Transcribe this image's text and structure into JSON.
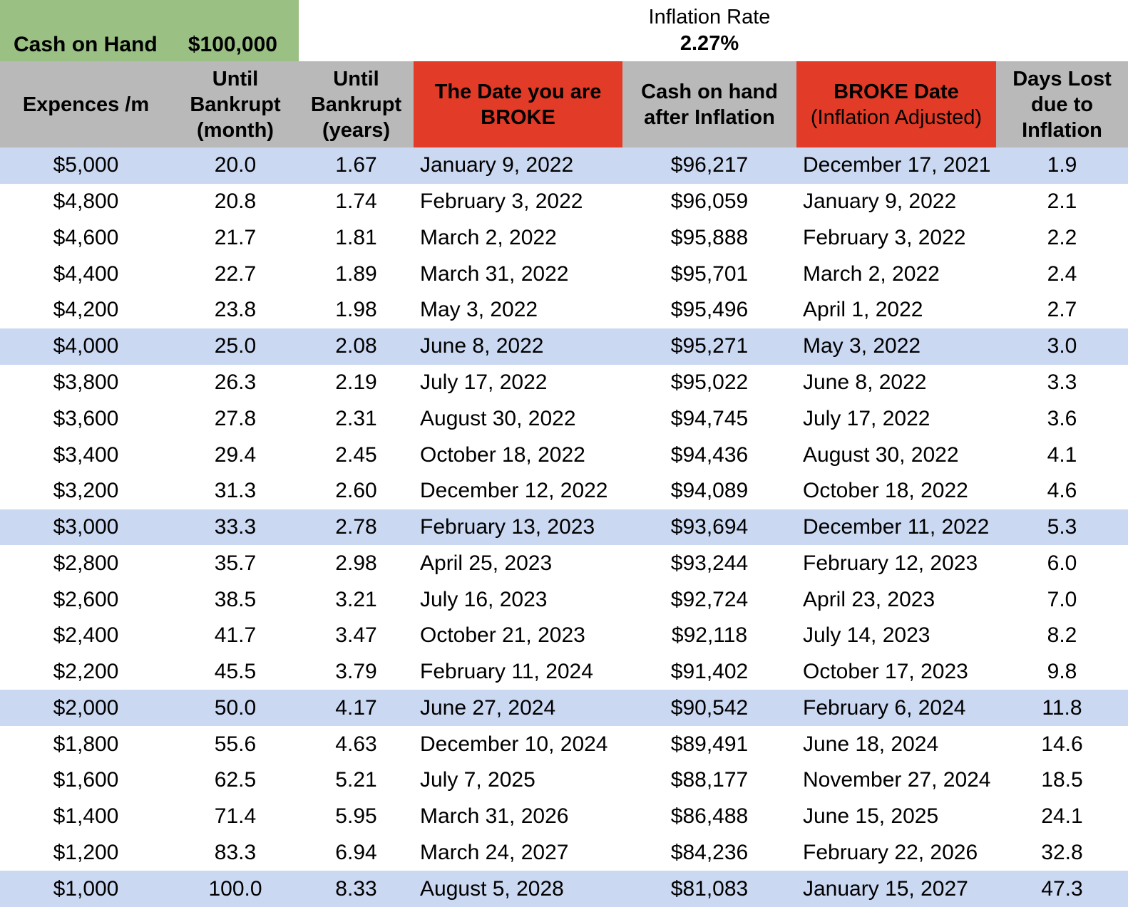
{
  "summary": {
    "cash_on_hand_label": "Cash on Hand",
    "cash_on_hand_value": "$100,000",
    "inflation_rate_label": "Inflation Rate",
    "inflation_rate_value": "2.27%"
  },
  "colors": {
    "green_cell": "#9bc083",
    "gray_header": "#b9b9b9",
    "red_header": "#e23b27",
    "highlight_row_blue": "#cbd8f2",
    "text": "#000000",
    "background": "#ffffff"
  },
  "table": {
    "columns": [
      {
        "id": "expences-per-month",
        "label": "Expences /m",
        "red": false
      },
      {
        "id": "until-bankrupt-month",
        "label": "Until Bankrupt (month)",
        "red": false
      },
      {
        "id": "until-bankrupt-years",
        "label": "Until Bankrupt (years)",
        "red": false
      },
      {
        "id": "date-you-are-broke",
        "label": "The Date you are BROKE",
        "red": true
      },
      {
        "id": "cash-after-inflation",
        "label": "Cash on hand after Inflation",
        "red": false
      },
      {
        "id": "broke-date-inflation-adjusted",
        "label": "BROKE Date",
        "sublabel": "(Inflation Adjusted)",
        "red": true
      },
      {
        "id": "days-lost-due-to-inflation",
        "label": "Days Lost due to Inflation",
        "red": false
      }
    ],
    "highlighted_row_indices": [
      0,
      5,
      10,
      15,
      20
    ],
    "rows": [
      [
        "$5,000",
        "20.0",
        "1.67",
        "January 9, 2022",
        "$96,217",
        "December 17, 2021",
        "1.9"
      ],
      [
        "$4,800",
        "20.8",
        "1.74",
        "February 3, 2022",
        "$96,059",
        "January 9, 2022",
        "2.1"
      ],
      [
        "$4,600",
        "21.7",
        "1.81",
        "March 2, 2022",
        "$95,888",
        "February 3, 2022",
        "2.2"
      ],
      [
        "$4,400",
        "22.7",
        "1.89",
        "March 31, 2022",
        "$95,701",
        "March 2, 2022",
        "2.4"
      ],
      [
        "$4,200",
        "23.8",
        "1.98",
        "May 3, 2022",
        "$95,496",
        "April 1, 2022",
        "2.7"
      ],
      [
        "$4,000",
        "25.0",
        "2.08",
        "June 8, 2022",
        "$95,271",
        "May 3, 2022",
        "3.0"
      ],
      [
        "$3,800",
        "26.3",
        "2.19",
        "July 17, 2022",
        "$95,022",
        "June 8, 2022",
        "3.3"
      ],
      [
        "$3,600",
        "27.8",
        "2.31",
        "August 30, 2022",
        "$94,745",
        "July 17, 2022",
        "3.6"
      ],
      [
        "$3,400",
        "29.4",
        "2.45",
        "October 18, 2022",
        "$94,436",
        "August 30, 2022",
        "4.1"
      ],
      [
        "$3,200",
        "31.3",
        "2.60",
        "December 12, 2022",
        "$94,089",
        "October 18, 2022",
        "4.6"
      ],
      [
        "$3,000",
        "33.3",
        "2.78",
        "February 13, 2023",
        "$93,694",
        "December 11, 2022",
        "5.3"
      ],
      [
        "$2,800",
        "35.7",
        "2.98",
        "April 25, 2023",
        "$93,244",
        "February 12, 2023",
        "6.0"
      ],
      [
        "$2,600",
        "38.5",
        "3.21",
        "July 16, 2023",
        "$92,724",
        "April 23, 2023",
        "7.0"
      ],
      [
        "$2,400",
        "41.7",
        "3.47",
        "October 21, 2023",
        "$92,118",
        "July 14, 2023",
        "8.2"
      ],
      [
        "$2,200",
        "45.5",
        "3.79",
        "February 11, 2024",
        "$91,402",
        "October 17, 2023",
        "9.8"
      ],
      [
        "$2,000",
        "50.0",
        "4.17",
        "June 27, 2024",
        "$90,542",
        "February 6, 2024",
        "11.8"
      ],
      [
        "$1,800",
        "55.6",
        "4.63",
        "December 10, 2024",
        "$89,491",
        "June 18, 2024",
        "14.6"
      ],
      [
        "$1,600",
        "62.5",
        "5.21",
        "July 7, 2025",
        "$88,177",
        "November 27, 2024",
        "18.5"
      ],
      [
        "$1,400",
        "71.4",
        "5.95",
        "March 31, 2026",
        "$86,488",
        "June 15, 2025",
        "24.1"
      ],
      [
        "$1,200",
        "83.3",
        "6.94",
        "March 24, 2027",
        "$84,236",
        "February 22, 2026",
        "32.8"
      ],
      [
        "$1,000",
        "100.0",
        "8.33",
        "August 5, 2028",
        "$81,083",
        "January 15, 2027",
        "47.3"
      ]
    ]
  }
}
